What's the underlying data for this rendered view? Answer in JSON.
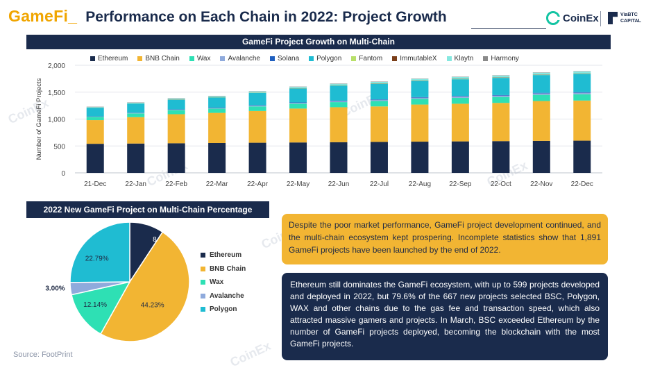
{
  "title": {
    "gamefi": "GameFi_",
    "main": "Performance on Each Chain in 2022: Project Growth"
  },
  "logos": {
    "coinex": "CoinEx",
    "viabtc_line1": "ViaBTC",
    "viabtc_line2": "CAPITAL",
    "watermark": "CoinEx"
  },
  "bar_panel": {
    "header": "GameFi Project Growth on Multi-Chain"
  },
  "pie_panel": {
    "header": "2022 New GameFi Project on Multi-Chain Percentage"
  },
  "text_boxes": {
    "yellow": "Despite the poor market performance, GameFi project development continued, and the multi-chain ecosystem kept prospering. Incomplete statistics show that 1,891 GameFi projects have been launched by the end of 2022.",
    "navy": "Ethereum still dominates the GameFi ecosystem, with up to 599 projects developed and deployed in 2022, but 79.6% of the 667 new projects selected BSC, Polygon, WAX and other chains due to the gas fee and transaction speed, which also attracted massive gamers and projects. In March, BSC exceeded Ethereum by the number of GameFi projects deployed, becoming the blockchain with the most GameFi projects."
  },
  "source": "Source:  FootPrint",
  "colors": {
    "navy": "#1a2b4c",
    "gold": "#f2b533"
  },
  "chart_data": [
    {
      "type": "bar",
      "stacked": true,
      "title": "GameFi Project Growth on Multi-Chain",
      "xlabel": "",
      "ylabel": "Number of GameFi Projects",
      "ylim": [
        0,
        2000
      ],
      "yticks": [
        "0",
        "500",
        "1,000",
        "1,500",
        "2,000"
      ],
      "grid": true,
      "legend_position": "top",
      "categories": [
        "21-Dec",
        "22-Jan",
        "22-Feb",
        "22-Mar",
        "22-Apr",
        "22-May",
        "22-Jun",
        "22-Jul",
        "22-Aug",
        "22-Sep",
        "22-Oct",
        "22-Nov",
        "22-Dec"
      ],
      "series": [
        {
          "name": "Ethereum",
          "color": "#1a2b4c",
          "values": [
            540,
            545,
            550,
            555,
            560,
            565,
            570,
            575,
            580,
            585,
            590,
            595,
            599
          ]
        },
        {
          "name": "BNB Chain",
          "color": "#f2b533",
          "values": [
            440,
            490,
            540,
            560,
            590,
            630,
            650,
            660,
            690,
            700,
            710,
            740,
            745
          ]
        },
        {
          "name": "Wax",
          "color": "#2ee0b4",
          "values": [
            60,
            70,
            75,
            80,
            85,
            90,
            95,
            100,
            105,
            110,
            110,
            115,
            117
          ]
        },
        {
          "name": "Avalanche",
          "color": "#8faadc",
          "values": [
            5,
            8,
            10,
            12,
            15,
            17,
            20,
            22,
            24,
            25,
            26,
            28,
            29
          ]
        },
        {
          "name": "Solana",
          "color": "#1f5fbf",
          "values": [
            5,
            5,
            5,
            6,
            7,
            8,
            8,
            9,
            9,
            10,
            10,
            10,
            10
          ]
        },
        {
          "name": "Polygon",
          "color": "#1fbcd2",
          "values": [
            160,
            170,
            180,
            190,
            230,
            260,
            280,
            290,
            300,
            310,
            320,
            330,
            340
          ]
        },
        {
          "name": "Fantom",
          "color": "#b8e06a",
          "values": [
            2,
            2,
            3,
            3,
            3,
            3,
            3,
            4,
            4,
            4,
            4,
            4,
            4
          ]
        },
        {
          "name": "ImmutableX",
          "color": "#7b3f1a",
          "values": [
            2,
            2,
            3,
            3,
            3,
            3,
            4,
            4,
            4,
            5,
            5,
            5,
            5
          ]
        },
        {
          "name": "Klaytn",
          "color": "#86e8e0",
          "values": [
            10,
            12,
            15,
            16,
            20,
            22,
            25,
            27,
            30,
            32,
            33,
            35,
            36
          ]
        },
        {
          "name": "Harmony",
          "color": "#8a8a8a",
          "values": [
            6,
            6,
            6,
            6,
            6,
            6,
            6,
            6,
            6,
            6,
            6,
            6,
            6
          ]
        }
      ]
    },
    {
      "type": "pie",
      "title": "2022 New GameFi Project on Multi-Chain Percentage",
      "labels": [
        "Ethereum",
        "BNB Chain",
        "Wax",
        "Avalanche",
        "Polygon"
      ],
      "values": [
        8.4,
        44.23,
        12.14,
        3.0,
        22.79
      ],
      "value_labels": [
        "8.40%",
        "44.23%",
        "12.14%",
        "3.00%",
        "22.79%"
      ],
      "colors": [
        "#1a2b4c",
        "#f2b533",
        "#2ee0b4",
        "#8faadc",
        "#1fbcd2"
      ],
      "legend_position": "right"
    }
  ]
}
